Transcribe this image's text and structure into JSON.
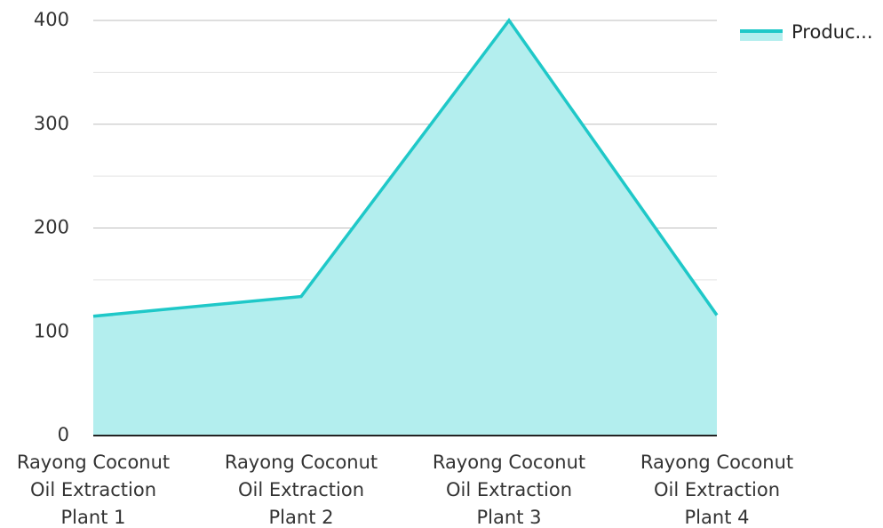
{
  "chart_data": {
    "type": "area",
    "categories": [
      "Rayong Coconut Oil Extraction Plant 1",
      "Rayong Coconut Oil Extraction Plant 2",
      "Rayong Coconut Oil Extraction Plant 3",
      "Rayong Coconut Oil Extraction Plant 4"
    ],
    "category_label_lines": [
      [
        "Rayong Coconut",
        "Oil Extraction",
        "Plant 1"
      ],
      [
        "Rayong Coconut",
        "Oil Extraction",
        "Plant 2"
      ],
      [
        "Rayong Coconut",
        "Oil Extraction",
        "Plant 3"
      ],
      [
        "Rayong Coconut",
        "Oil Extraction",
        "Plant 4"
      ]
    ],
    "series": [
      {
        "name": "Produc...",
        "values": [
          115,
          134,
          400,
          116
        ]
      }
    ],
    "ylim": [
      0,
      400
    ],
    "yticks": [
      0,
      100,
      200,
      300,
      400
    ],
    "grid": true,
    "legend": "top-right",
    "colors": {
      "line": "#1fc8c8",
      "fill": "#b3eeee",
      "major_grid": "#bdbdbd",
      "minor_grid": "#e3e3e3",
      "axis": "#222222"
    },
    "title": "",
    "xlabel": "",
    "ylabel": ""
  }
}
